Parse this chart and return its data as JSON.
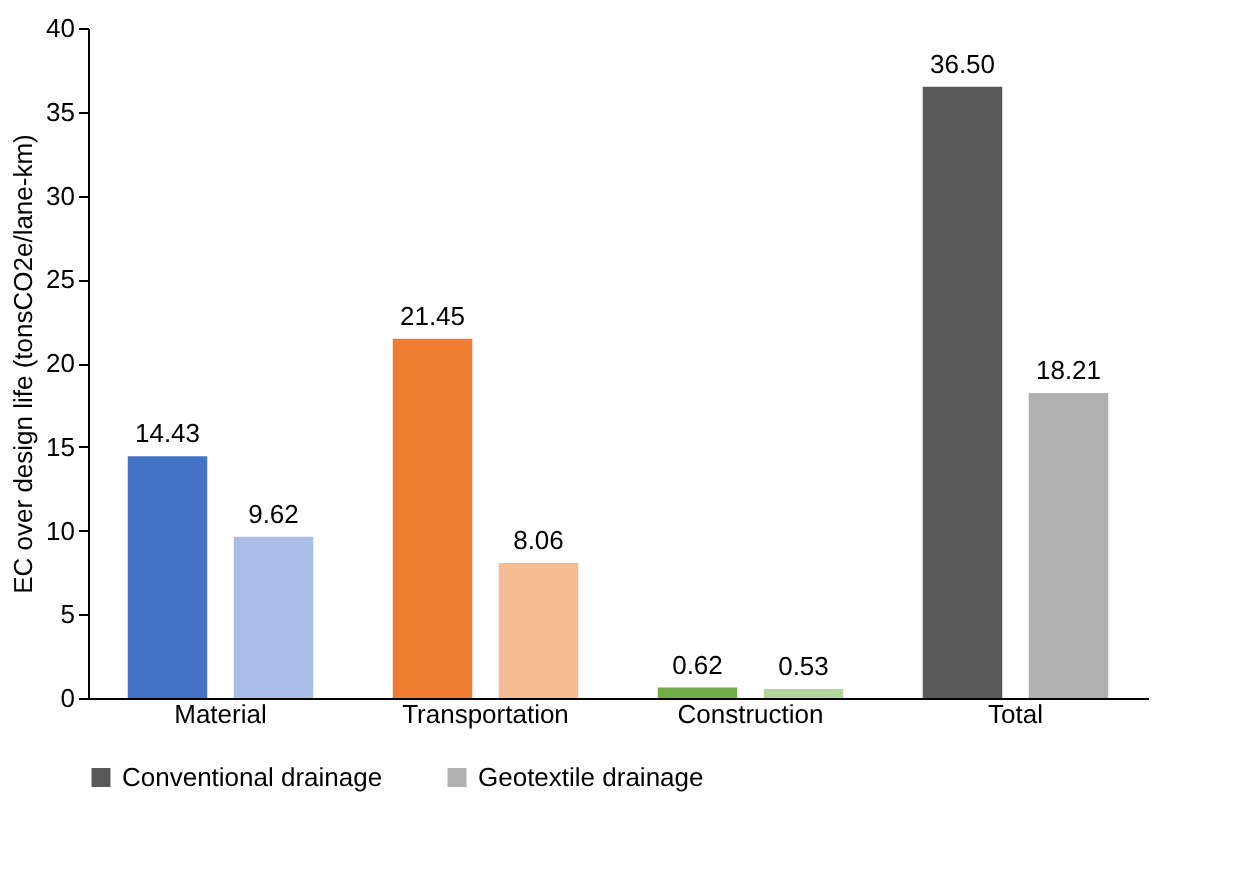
{
  "chart_data": {
    "type": "bar",
    "ylabel": "EC over design life (tonsCO2e/lane-km)",
    "categories": [
      "Material",
      "Transportation",
      "Construction",
      "Total"
    ],
    "series": [
      {
        "name": "Conventional drainage",
        "color": "#595959",
        "colors": [
          "#4472c4",
          "#ed7d31",
          "#70ad47",
          "#595959"
        ],
        "values": [
          14.43,
          21.45,
          0.62,
          36.5
        ],
        "value_labels": [
          "14.43",
          "21.45",
          "0.62",
          "36.50"
        ]
      },
      {
        "name": "Geotextile drainage",
        "color": "#b0b0b0",
        "colors": [
          "#a9bde6",
          "#f5bc94",
          "#b3d69c",
          "#b0b0b0"
        ],
        "values": [
          9.62,
          8.06,
          0.53,
          18.21
        ],
        "value_labels": [
          "9.62",
          "8.06",
          "0.53",
          "18.21"
        ]
      }
    ],
    "ylim": [
      0,
      40
    ],
    "yticks": [
      0,
      5,
      10,
      15,
      20,
      25,
      30,
      35,
      40
    ],
    "legend": "bottom"
  }
}
